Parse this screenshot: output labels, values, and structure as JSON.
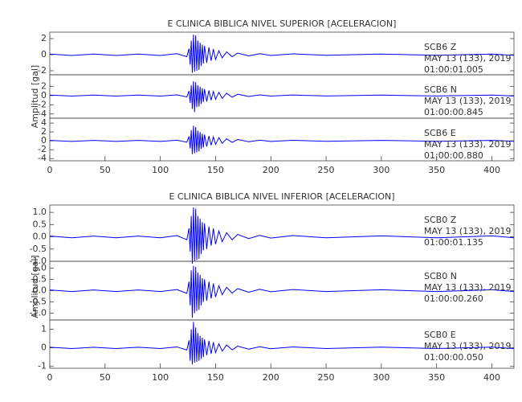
{
  "chart_data": [
    {
      "type": "line",
      "title": "E CLINICA BIBLICA NIVEL SUPERIOR [ACELERACION]",
      "y_label": "Amplitud [gal]",
      "x": [
        0,
        20,
        40,
        60,
        80,
        100,
        115,
        124,
        126,
        127,
        128,
        129,
        130,
        131,
        132,
        133,
        134,
        135,
        136,
        137,
        138,
        139,
        140,
        142,
        144,
        146,
        148,
        150,
        153,
        156,
        160,
        165,
        170,
        180,
        190,
        200,
        220,
        250,
        300,
        350,
        400,
        420
      ],
      "xlim": [
        0,
        420
      ],
      "xticks": [
        0,
        50,
        100,
        150,
        200,
        250,
        300,
        350,
        400
      ],
      "panels": [
        {
          "ylim": [
            -2.5,
            2.8
          ],
          "yticks": [
            2,
            0,
            -2
          ],
          "color": "#0000ff",
          "annotations": [
            "SCB6   Z",
            "MAY 13 (133), 2019",
            "01:00:01.005"
          ],
          "values": [
            0.08,
            -0.1,
            0.08,
            -0.1,
            0.08,
            -0.1,
            0.12,
            -0.25,
            0.75,
            -1.25,
            1.75,
            -2.25,
            2.5,
            -2.1,
            2.4,
            -2,
            1.75,
            -1.9,
            1.5,
            -1.4,
            1.25,
            -1.1,
            1.1,
            -1,
            0.9,
            -0.75,
            0.7,
            -0.6,
            0.5,
            -0.4,
            0.35,
            -0.25,
            0.2,
            -0.15,
            0.12,
            -0.1,
            0.1,
            -0.08,
            0.08,
            -0.08,
            0.08,
            -0.08
          ]
        },
        {
          "ylim": [
            -4.9,
            4.5
          ],
          "yticks": [
            2,
            0,
            -2,
            -4
          ],
          "color": "#0000ff",
          "annotations": [
            "SCB6   N",
            "MAY 13 (133), 2019",
            "01:00:00.845"
          ],
          "values": [
            0.1,
            -0.12,
            0.1,
            -0.12,
            0.1,
            -0.12,
            0.15,
            -0.3,
            1,
            -1.6,
            2.2,
            -2.9,
            3.1,
            -3.6,
            2.9,
            -2.5,
            2.2,
            -2.4,
            1.9,
            -1.8,
            1.6,
            -1.4,
            1.4,
            -1.3,
            1.1,
            -1,
            0.9,
            -0.8,
            0.7,
            -0.6,
            0.5,
            -0.35,
            0.3,
            -0.2,
            0.15,
            -0.12,
            0.12,
            -0.1,
            0.1,
            -0.1,
            0.1,
            -0.1
          ]
        },
        {
          "ylim": [
            -4.5,
            5.1
          ],
          "yticks": [
            4,
            2,
            0,
            -2,
            -4
          ],
          "color": "#0000ff",
          "annotations": [
            "SCB6   E",
            "MAY 13 (133), 2019",
            "01:00:00.880"
          ],
          "values": [
            0.1,
            -0.12,
            0.1,
            -0.12,
            0.1,
            -0.12,
            0.15,
            -0.3,
            1,
            -1.7,
            2.4,
            -3,
            3.4,
            -2.8,
            3.1,
            -2.6,
            2.3,
            -2.4,
            2,
            -1.8,
            1.6,
            -1.5,
            1.4,
            -1.3,
            1.1,
            -1,
            0.9,
            -0.8,
            0.7,
            -0.55,
            0.45,
            -0.35,
            0.3,
            -0.2,
            0.15,
            -0.12,
            0.12,
            -0.1,
            0.1,
            -0.1,
            0.1,
            -0.1
          ]
        }
      ]
    },
    {
      "type": "line",
      "title": "E CLINICA BIBLICA NIVEL INFERIOR [ACELERACION]",
      "y_label": "Amplitud [gal]",
      "x": [
        0,
        20,
        40,
        60,
        80,
        100,
        115,
        124,
        126,
        127,
        128,
        129,
        130,
        131,
        132,
        133,
        134,
        135,
        136,
        137,
        138,
        139,
        140,
        142,
        144,
        146,
        148,
        150,
        153,
        156,
        160,
        165,
        170,
        180,
        190,
        200,
        220,
        250,
        300,
        350,
        400,
        420
      ],
      "xlim": [
        0,
        420
      ],
      "xticks": [
        0,
        50,
        100,
        150,
        200,
        250,
        300,
        350,
        400
      ],
      "panels": [
        {
          "ylim": [
            -1.0,
            1.3
          ],
          "yticks": [
            {
              "value": 1,
              "label": "1.0"
            },
            0.5,
            {
              "value": 0,
              "label": "0.0"
            },
            -0.5,
            {
              "value": -1,
              "label": "-1.0"
            }
          ],
          "color": "#0000ff",
          "annotations": [
            "SCB0   Z",
            "MAY 13 (133), 2019",
            "01:00:01.135"
          ],
          "values": [
            0.03,
            -0.04,
            0.03,
            -0.04,
            0.03,
            -0.04,
            0.05,
            -0.12,
            0.35,
            -0.6,
            0.85,
            -1.1,
            1.2,
            -1.0,
            1.15,
            -0.95,
            0.85,
            -0.9,
            0.75,
            -0.7,
            0.6,
            -0.55,
            0.55,
            -0.5,
            0.42,
            -0.36,
            0.34,
            -0.3,
            0.24,
            -0.2,
            0.17,
            -0.12,
            0.1,
            -0.07,
            0.06,
            -0.05,
            0.05,
            -0.04,
            0.04,
            -0.04,
            0.04,
            -0.04
          ]
        },
        {
          "ylim": [
            -1.3,
            1.3
          ],
          "yticks": [
            {
              "value": 1,
              "label": "1.0"
            },
            0.5,
            {
              "value": 0,
              "label": "0.0"
            },
            -0.5,
            {
              "value": -1,
              "label": "-1.0"
            }
          ],
          "color": "#0000ff",
          "annotations": [
            "SCB0   N",
            "MAY 13 (133), 2019",
            "01:00:00.260"
          ],
          "values": [
            0.03,
            -0.04,
            0.03,
            -0.04,
            0.03,
            -0.04,
            0.05,
            -0.12,
            0.4,
            -0.65,
            0.9,
            -1.2,
            1.1,
            -1.0,
            1.05,
            -0.9,
            0.8,
            -0.85,
            0.7,
            -0.65,
            0.55,
            -0.5,
            0.5,
            -0.45,
            0.4,
            -0.35,
            0.32,
            -0.28,
            0.22,
            -0.18,
            0.15,
            -0.11,
            0.09,
            -0.07,
            0.06,
            -0.05,
            0.05,
            -0.04,
            0.04,
            -0.04,
            0.04,
            -0.04
          ]
        },
        {
          "ylim": [
            -1.1,
            1.5
          ],
          "yticks": [
            1,
            0,
            -1
          ],
          "color": "#0000ff",
          "annotations": [
            "SCB0   E",
            "MAY 13 (133), 2019",
            "01:00:00.050"
          ],
          "values": [
            0.03,
            -0.04,
            0.03,
            -0.04,
            0.03,
            -0.04,
            0.05,
            -0.12,
            0.4,
            -0.7,
            1.0,
            -0.9,
            1.4,
            -0.8,
            1.1,
            -0.75,
            0.8,
            -0.7,
            0.65,
            -0.6,
            0.55,
            -0.5,
            0.45,
            -0.4,
            0.38,
            -0.32,
            0.3,
            -0.26,
            0.22,
            -0.18,
            0.15,
            -0.11,
            0.09,
            -0.07,
            0.06,
            -0.05,
            0.05,
            -0.04,
            0.04,
            -0.04,
            0.04,
            -0.04
          ]
        }
      ]
    }
  ]
}
